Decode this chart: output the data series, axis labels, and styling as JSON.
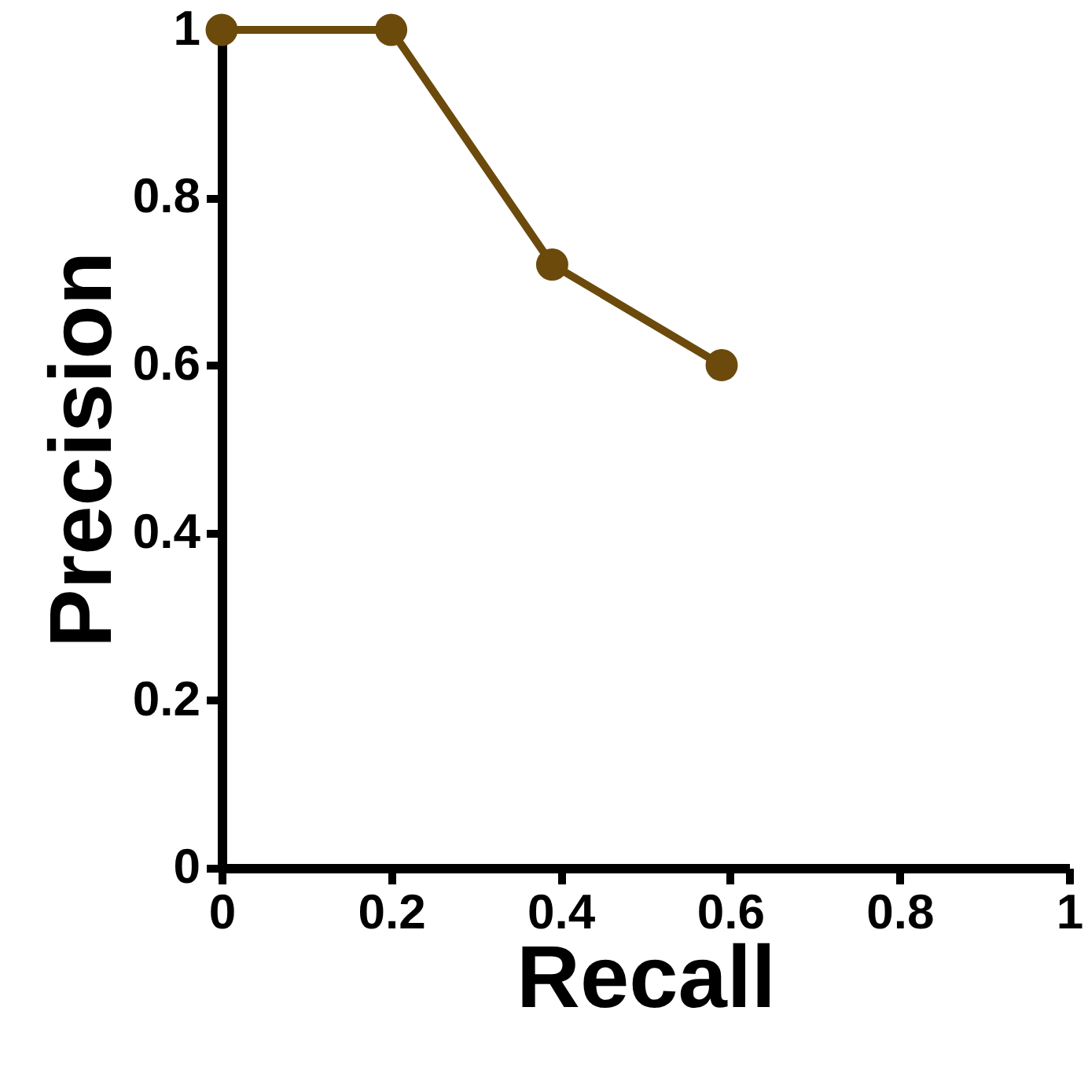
{
  "chart_data": {
    "type": "line",
    "xlabel": "Recall",
    "ylabel": "Precision",
    "x": [
      0,
      0.2,
      0.39,
      0.59
    ],
    "series": [
      {
        "color": "#6b4a0c",
        "values": [
          1,
          1,
          0.72,
          0.6
        ]
      }
    ],
    "xlim": [
      0,
      1
    ],
    "ylim": [
      0,
      1
    ],
    "xticks": [
      0,
      0.2,
      0.4,
      0.6,
      0.8,
      1
    ],
    "yticks": [
      0,
      0.2,
      0.4,
      0.6,
      0.8,
      1
    ],
    "grid": false,
    "marker": "circle",
    "line_style": "solid"
  }
}
